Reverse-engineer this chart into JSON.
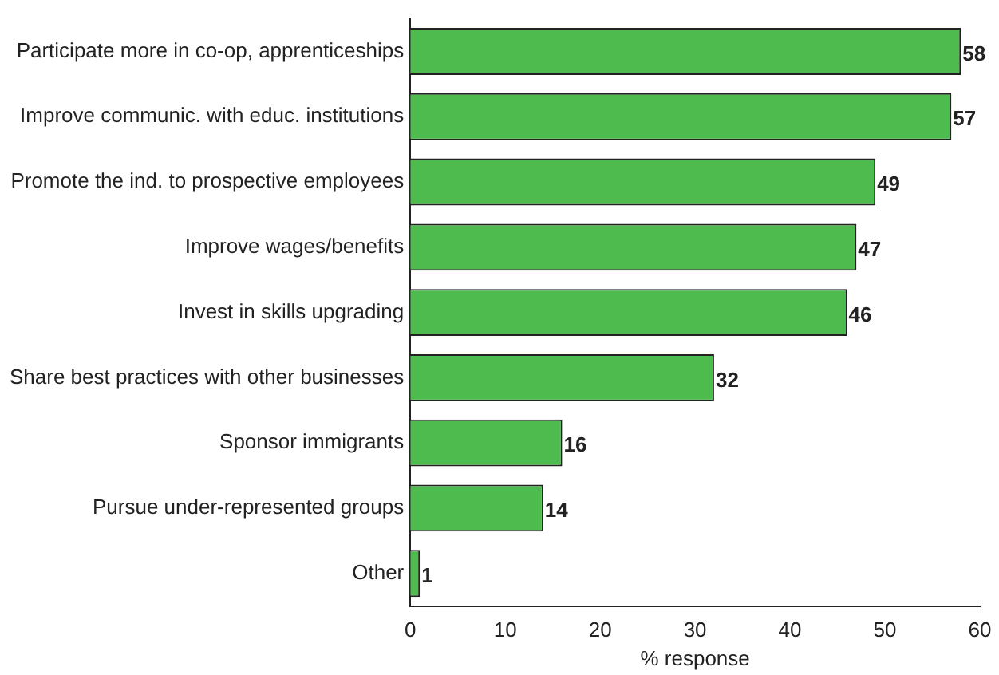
{
  "chart_data": {
    "type": "bar",
    "orientation": "horizontal",
    "xlabel": "% response",
    "categories": [
      "Participate more in co-op, apprenticeships",
      "Improve communic. with educ. institutions",
      "Promote the ind. to prospective employees",
      "Improve wages/benefits",
      "Invest in skills upgrading",
      "Share best practices with other businesses",
      "Sponsor immigrants",
      "Pursue under-represented groups",
      "Other"
    ],
    "values": [
      58,
      57,
      49,
      47,
      46,
      32,
      16,
      14,
      1
    ],
    "color": "#4dbb4d",
    "xlim": [
      0,
      60
    ],
    "xticks": [
      0,
      10,
      20,
      30,
      40,
      50,
      60
    ],
    "grid": false,
    "legend": false,
    "data_labels": true
  }
}
